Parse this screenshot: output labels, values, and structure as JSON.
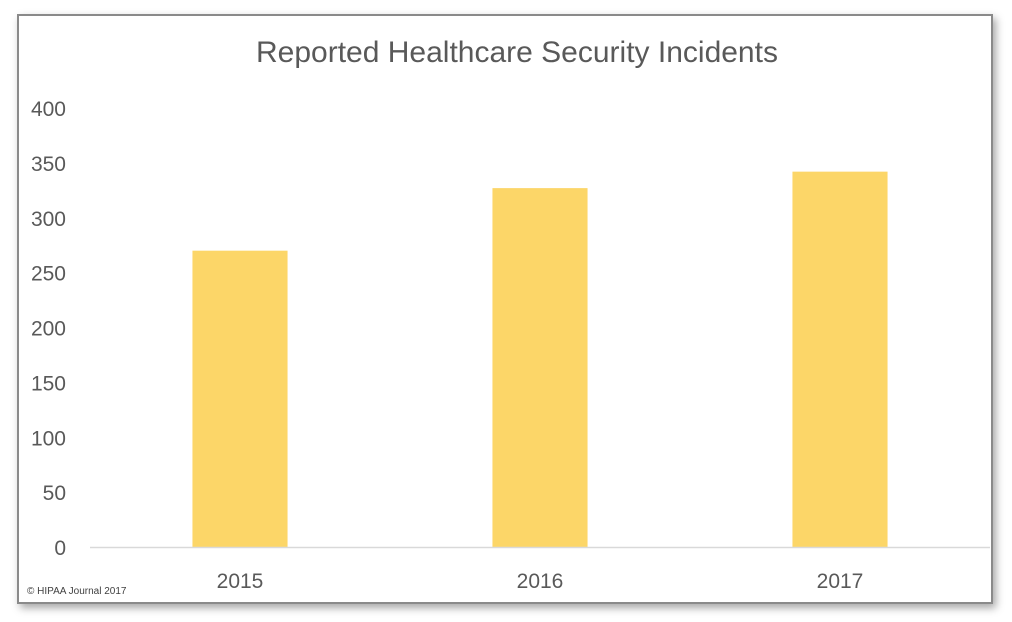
{
  "chart_data": {
    "type": "bar",
    "title": "Reported Healthcare Security Incidents",
    "categories": [
      "2015",
      "2016",
      "2017"
    ],
    "values": [
      270,
      327,
      342
    ],
    "ylim": [
      0,
      400
    ],
    "yticks": [
      0,
      50,
      100,
      150,
      200,
      250,
      300,
      350,
      400
    ],
    "xlabel": "",
    "ylabel": "",
    "grid": false,
    "legend": "none",
    "bar_color": "#FCD668",
    "axis_color": "#D9D9D9",
    "text_color": "#595959"
  },
  "footer": {
    "copyright": "© HIPAA Journal 2017"
  }
}
